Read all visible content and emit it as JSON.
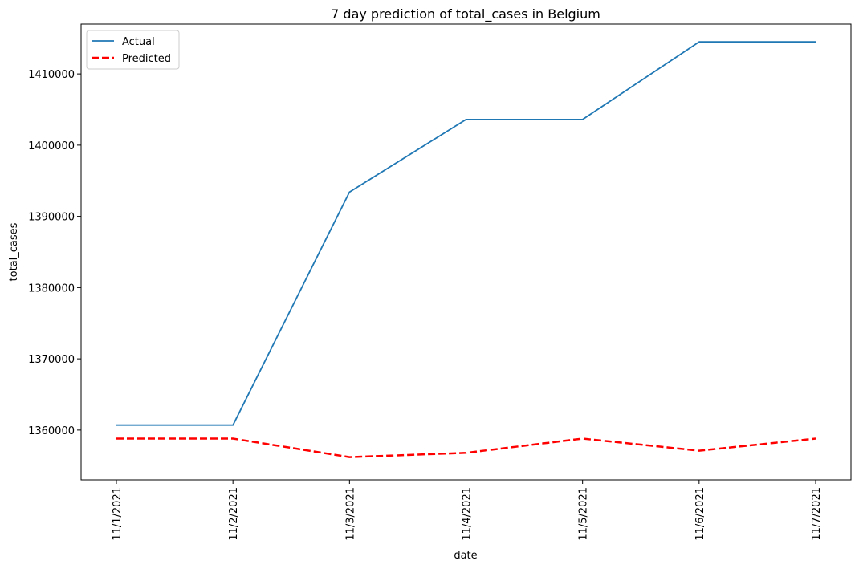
{
  "chart_data": {
    "type": "line",
    "title": "7 day prediction of total_cases in Belgium",
    "xlabel": "date",
    "ylabel": "total_cases",
    "categories": [
      "11/1/2021",
      "11/2/2021",
      "11/3/2021",
      "11/4/2021",
      "11/5/2021",
      "11/6/2021",
      "11/7/2021"
    ],
    "ylim": [
      1353000,
      1417000
    ],
    "yticks": [
      1360000,
      1370000,
      1380000,
      1390000,
      1400000,
      1410000
    ],
    "grid": false,
    "legend_position": "top-left",
    "series": [
      {
        "name": "Actual",
        "color": "#1f77b4",
        "style": "solid",
        "values": [
          1360700,
          1360700,
          1393400,
          1403600,
          1403600,
          1414500,
          1414500
        ]
      },
      {
        "name": "Predicted",
        "color": "#ff0000",
        "style": "dashed",
        "values": [
          1358800,
          1358800,
          1356200,
          1356800,
          1358800,
          1357100,
          1358800
        ]
      }
    ]
  }
}
